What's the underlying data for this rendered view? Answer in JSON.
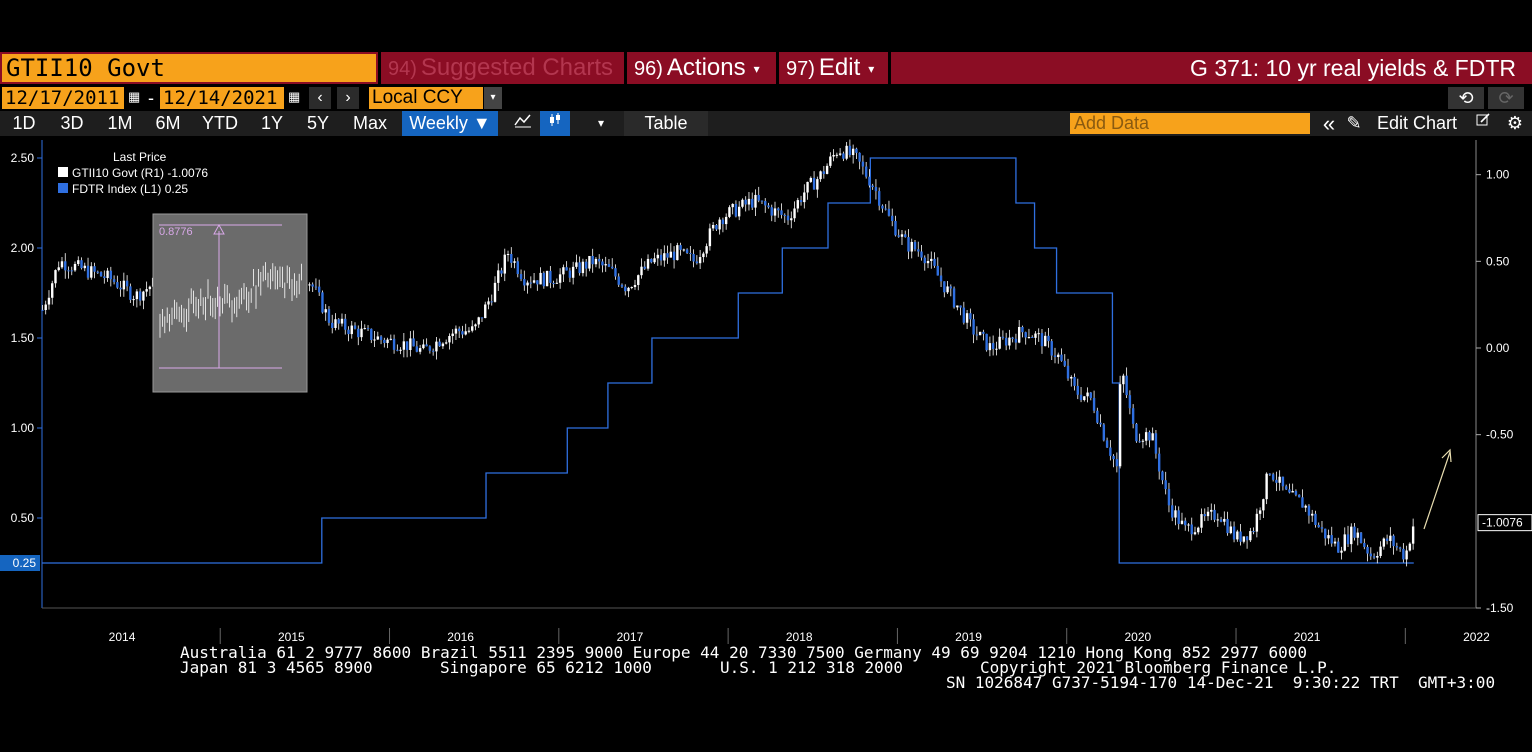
{
  "header": {
    "ticker": "GTII10 Govt",
    "menu": [
      {
        "num": "94)",
        "label": "Suggested Charts",
        "caret": ""
      },
      {
        "num": "96)",
        "label": "Actions",
        "caret": "▾"
      },
      {
        "num": "97)",
        "label": "Edit",
        "caret": "▾"
      }
    ],
    "chart_title": "G 371: 10 yr real yields & FDTR"
  },
  "dates": {
    "start": "12/17/2011",
    "dash": "-",
    "end": "12/14/2021",
    "prev": "‹",
    "next": "›"
  },
  "currency": {
    "value": "Local CCY",
    "caret": "▾"
  },
  "history": {
    "undo": "⟲",
    "redo": "⟳"
  },
  "toolbar": {
    "tabs": [
      "1D",
      "3D",
      "1M",
      "6M",
      "YTD",
      "1Y",
      "5Y",
      "Max"
    ],
    "frequency": "Weekly ▼",
    "line_icon": "line-chart-icon",
    "candle_icon": "candlestick-icon",
    "dropdown": "▾",
    "table": "Table",
    "add_data_placeholder": "Add Data",
    "collapse": "«",
    "edit_chart": "Edit Chart",
    "pencil": "✎"
  },
  "colors": {
    "background": "#000000",
    "accent_orange": "#f7a21b",
    "title_bar": "#8b0d24",
    "fdtr_series": "#2f6fe0",
    "price_series": "#ffffff",
    "axis": "#2f6fe0"
  },
  "chart_data": {
    "type": "line",
    "legend": {
      "title": "Last Price",
      "entries": [
        {
          "label": "GTII10 Govt (R1) -1.0076",
          "color": "#ffffff"
        },
        {
          "label": "FDTR Index (L1) 0.25",
          "color": "#2f6fe0"
        }
      ],
      "placement": "top-left"
    },
    "x_ticks": [
      "2014",
      "2015",
      "2016",
      "2017",
      "2018",
      "2019",
      "2020",
      "2021",
      "2022"
    ],
    "left_axis": {
      "ticks": [
        "2.50",
        "2.00",
        "1.50",
        "1.00",
        "0.50"
      ],
      "range": [
        0.0,
        2.6
      ],
      "last_value_label": "0.25"
    },
    "right_axis": {
      "ticks": [
        "1.00",
        "0.50",
        "0.00",
        "-0.50",
        "-1.50"
      ],
      "range": [
        -1.5,
        1.2
      ],
      "last_value_label": "-1.0076"
    },
    "series": [
      {
        "name": "FDTR Index",
        "axis": "left",
        "shape": "step",
        "x": [
          2013.85,
          2015.5,
          2016.47,
          2016.95,
          2017.19,
          2017.45,
          2017.96,
          2018.22,
          2018.49,
          2018.74,
          2019.6,
          2019.71,
          2019.84,
          2020.17,
          2020.21,
          2021.95
        ],
        "y": [
          0.25,
          0.5,
          0.75,
          1.0,
          1.25,
          1.5,
          1.75,
          2.0,
          2.25,
          2.5,
          2.25,
          2.0,
          1.75,
          1.25,
          0.25,
          0.25
        ]
      },
      {
        "name": "GTII10 Govt",
        "axis": "right",
        "shape": "candles",
        "x": [
          2013.85,
          2013.95,
          2014.1,
          2014.25,
          2014.4,
          2014.55,
          2014.7,
          2014.8,
          2014.95,
          2015.1,
          2015.2,
          2015.3,
          2015.45,
          2015.55,
          2015.7,
          2015.85,
          2016.0,
          2016.1,
          2016.2,
          2016.3,
          2016.4,
          2016.5,
          2016.6,
          2016.7,
          2016.85,
          2017.0,
          2017.1,
          2017.2,
          2017.3,
          2017.45,
          2017.6,
          2017.7,
          2017.85,
          2017.95,
          2018.05,
          2018.15,
          2018.25,
          2018.35,
          2018.45,
          2018.55,
          2018.65,
          2018.75,
          2018.85,
          2018.95,
          2019.05,
          2019.15,
          2019.25,
          2019.35,
          2019.45,
          2019.55,
          2019.65,
          2019.75,
          2019.85,
          2019.95,
          2020.05,
          2020.12,
          2020.2,
          2020.22,
          2020.3,
          2020.4,
          2020.5,
          2020.6,
          2020.7,
          2020.8,
          2020.9,
          2021.0,
          2021.1,
          2021.2,
          2021.3,
          2021.4,
          2021.5,
          2021.6,
          2021.7,
          2021.8,
          2021.9,
          2021.95
        ],
        "y": [
          0.22,
          0.5,
          0.45,
          0.4,
          0.3,
          0.4,
          0.25,
          0.1,
          0.0,
          0.2,
          0.45,
          0.55,
          0.35,
          0.15,
          0.1,
          0.05,
          0.02,
          -0.02,
          0.05,
          0.1,
          0.1,
          0.3,
          0.55,
          0.4,
          0.4,
          0.45,
          0.5,
          0.45,
          0.35,
          0.5,
          0.55,
          0.5,
          0.75,
          0.8,
          0.85,
          0.8,
          0.75,
          0.9,
          1.0,
          1.15,
          1.1,
          0.95,
          0.75,
          0.6,
          0.55,
          0.4,
          0.25,
          0.1,
          0.0,
          0.05,
          0.1,
          0.05,
          -0.05,
          -0.25,
          -0.3,
          -0.5,
          -0.7,
          -0.1,
          -0.5,
          -0.5,
          -0.9,
          -1.05,
          -1.0,
          -0.95,
          -1.1,
          -1.05,
          -0.7,
          -0.85,
          -0.9,
          -1.05,
          -1.15,
          -1.05,
          -1.2,
          -1.1,
          -1.2,
          -1.0076
        ]
      }
    ],
    "annotations": {
      "inset_value": "0.8776",
      "arrow": "up-right trend arrow"
    }
  },
  "footer": {
    "line1": "Australia 61 2 9777 8600 Brazil 5511 2395 9000 Europe 44 20 7330 7500 Germany 49 69 9204 1210 Hong Kong 852 2977 6000",
    "line2a": "Japan 81 3 4565 8900",
    "line2b": "Singapore 65 6212 1000",
    "line2c": "U.S. 1 212 318 2000",
    "line2d": "Copyright 2021 Bloomberg Finance L.P.",
    "line3": "SN 1026847 G737-5194-170 14-Dec-21  9:30:22 TRT  GMT+3:00"
  }
}
